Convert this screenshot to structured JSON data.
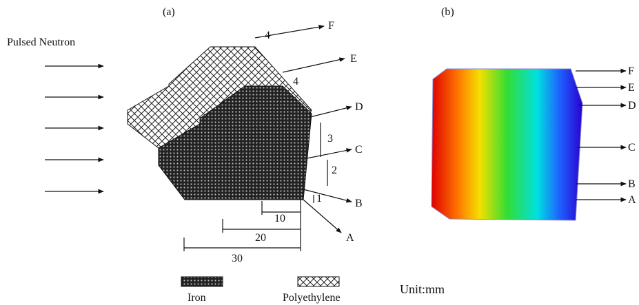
{
  "panel_a": {
    "label": "(a)",
    "source_label": "Pulsed Neutron",
    "points": [
      "F",
      "E",
      "D",
      "C",
      "B",
      "A"
    ],
    "dimensions": [
      "4",
      "4",
      "3",
      "2",
      "1",
      "10",
      "20",
      "30"
    ]
  },
  "panel_b": {
    "label": "(b)",
    "points": [
      "F",
      "E",
      "D",
      "C",
      "B",
      "A"
    ]
  },
  "legend": {
    "items": [
      "Iron",
      "Polyethylene"
    ],
    "unit": "Unit:mm"
  }
}
